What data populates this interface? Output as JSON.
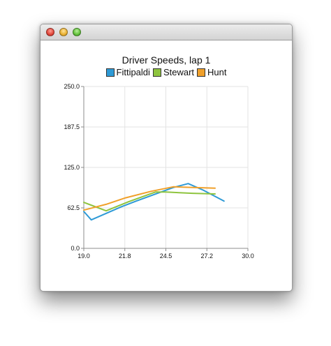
{
  "window": {
    "title": ""
  },
  "colors": {
    "grid": "#e3e3e3",
    "axis": "#8c8c8c"
  },
  "chart_data": {
    "type": "line",
    "title": "Driver Speeds, lap 1",
    "xlabel": "",
    "ylabel": "",
    "xlim": [
      19.0,
      30.0
    ],
    "ylim": [
      0.0,
      250.0
    ],
    "x_ticks": [
      "19.0",
      "21.8",
      "24.5",
      "27.2",
      "30.0"
    ],
    "y_ticks": [
      "250.0",
      "187.5",
      "125.0",
      "62.5",
      "0.0"
    ],
    "grid": true,
    "legend": "top-center",
    "series": [
      {
        "name": "Fittipaldi",
        "color": "#2e9ad6",
        "points": [
          [
            19.0,
            57
          ],
          [
            19.5,
            44
          ],
          [
            21.5,
            64
          ],
          [
            22.5,
            73
          ],
          [
            25.0,
            94
          ],
          [
            26.0,
            100
          ],
          [
            27.0,
            90
          ],
          [
            28.4,
            73
          ]
        ]
      },
      {
        "name": "Stewart",
        "color": "#8ec43e",
        "points": [
          [
            19.0,
            71
          ],
          [
            20.5,
            58
          ],
          [
            22.0,
            72
          ],
          [
            23.8,
            87
          ],
          [
            24.5,
            87
          ],
          [
            26.3,
            85
          ],
          [
            27.8,
            84
          ]
        ]
      },
      {
        "name": "Hunt",
        "color": "#f0a02a",
        "points": [
          [
            19.0,
            59
          ],
          [
            20.5,
            68
          ],
          [
            21.8,
            78
          ],
          [
            23.5,
            88
          ],
          [
            25.0,
            95
          ],
          [
            26.3,
            94
          ],
          [
            27.8,
            93
          ]
        ]
      }
    ]
  }
}
